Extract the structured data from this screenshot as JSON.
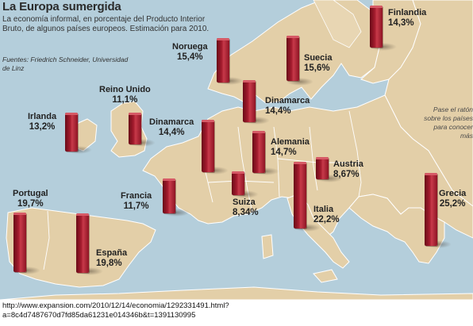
{
  "title": "La Europa sumergida",
  "subtitle": "La economía informal, en porcentaje del Producto Interior Bruto, de algunos países europeos. Estimación para 2010.",
  "source": "Fuentes: Friedrich Schneider, Universidad de Linz",
  "hint": "Pase el ratón sobre los países para conocer más",
  "url_line1": "http://www.expansion.com/2010/12/14/economia/1292331491.html?",
  "url_line2": "a=8c4d7487670d7fd85da61231e014346b&t=1391130995",
  "countries": [
    {
      "name": "Finlandia",
      "value": "14,3%",
      "pct": 14.3
    },
    {
      "name": "Noruega",
      "value": "15,4%",
      "pct": 15.4
    },
    {
      "name": "Suecia",
      "value": "15,6%",
      "pct": 15.6
    },
    {
      "name": "Reino Unido",
      "value": "11,1%",
      "pct": 11.1
    },
    {
      "name": "Dinamarca",
      "value": "14,4%",
      "pct": 14.4
    },
    {
      "name": "Irlanda",
      "value": "13,2%",
      "pct": 13.2
    },
    {
      "name": "Dinamarca",
      "value": "14,4%",
      "pct": 14.4
    },
    {
      "name": "Alemania",
      "value": "14,7%",
      "pct": 14.7
    },
    {
      "name": "Austria",
      "value": "8,67%",
      "pct": 8.67
    },
    {
      "name": "Francia",
      "value": "11,7%",
      "pct": 11.7
    },
    {
      "name": "Suiza",
      "value": "8,34%",
      "pct": 8.34
    },
    {
      "name": "Portugal",
      "value": "19,7%",
      "pct": 19.7
    },
    {
      "name": "Italia",
      "value": "22,2%",
      "pct": 22.2
    },
    {
      "name": "Grecia",
      "value": "25,2%",
      "pct": 25.2
    },
    {
      "name": "España",
      "value": "19,8%",
      "pct": 19.8
    }
  ],
  "colors": {
    "sea": "#b4cedb",
    "land": "#e3cfa8",
    "border": "#ffffff",
    "bar": "#a51c2e"
  }
}
